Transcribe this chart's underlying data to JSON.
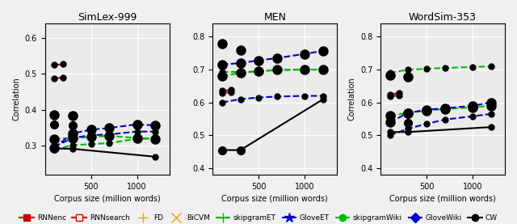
{
  "panels": [
    {
      "title": "SimLex-999",
      "xlabel": "Corpus size (million words)",
      "ylabel": "Correlation",
      "ylim": [
        0.22,
        0.64
      ],
      "yticks": [
        0.3,
        0.4,
        0.5,
        0.6
      ],
      "series": {
        "RNNenc": {
          "x": [
            100,
            200
          ],
          "y": [
            0.525,
            0.527
          ],
          "color": "#CC0000",
          "marker": "s",
          "ls": "-",
          "filled": true
        },
        "RNNsearch": {
          "x": [
            100,
            200
          ],
          "y": [
            0.488,
            0.49
          ],
          "color": "#CC0000",
          "marker": "s",
          "ls": "-",
          "filled": false
        },
        "FD": {
          "x": [
            100,
            300
          ],
          "y": [
            0.387,
            0.385
          ],
          "color": "#DDAA00",
          "marker": "+",
          "ls": "none",
          "filled": true
        },
        "BiCVM": {
          "x": [
            100,
            300
          ],
          "y": [
            0.36,
            0.358
          ],
          "color": "#DDAA00",
          "marker": "x",
          "ls": "none",
          "filled": true
        },
        "skipgramET": {
          "x": [
            100,
            300,
            500,
            700,
            1000,
            1200
          ],
          "y": [
            0.32,
            0.322,
            0.325,
            0.328,
            0.322,
            0.32
          ],
          "color": "#00BB00",
          "marker": "+",
          "ls": "--",
          "filled": true
        },
        "GloveET": {
          "x": [
            100,
            300,
            500,
            700,
            1000,
            1200
          ],
          "y": [
            0.295,
            0.335,
            0.345,
            0.35,
            0.36,
            0.357
          ],
          "color": "#0000CC",
          "marker": "*",
          "ls": "--",
          "filled": true
        },
        "skipgramWiki": {
          "x": [
            100,
            300,
            500,
            700,
            1000,
            1200
          ],
          "y": [
            0.29,
            0.302,
            0.305,
            0.308,
            0.32,
            0.32
          ],
          "color": "#00BB00",
          "marker": "o",
          "ls": "--",
          "filled": true
        },
        "GloveWiki": {
          "x": [
            100,
            300,
            500,
            700,
            1000,
            1200
          ],
          "y": [
            0.298,
            0.322,
            0.33,
            0.332,
            0.34,
            0.34
          ],
          "color": "#0000CC",
          "marker": "D",
          "ls": "--",
          "filled": true
        },
        "CW": {
          "x": [
            100,
            300,
            1200
          ],
          "y": [
            0.293,
            0.292,
            0.27
          ],
          "color": "#000000",
          "marker": "o",
          "ls": "-",
          "filled": true
        }
      }
    },
    {
      "title": "MEN",
      "xlabel": "Corpus size (million words)",
      "ylabel": "",
      "ylim": [
        0.38,
        0.84
      ],
      "yticks": [
        0.4,
        0.5,
        0.6,
        0.7,
        0.8
      ],
      "series": {
        "RNNenc": {
          "x": [
            100,
            200
          ],
          "y": [
            0.635,
            0.638
          ],
          "color": "#CC0000",
          "marker": "s",
          "ls": "-",
          "filled": true
        },
        "RNNsearch": {
          "x": [
            100,
            200
          ],
          "y": [
            0.628,
            0.632
          ],
          "color": "#CC0000",
          "marker": "s",
          "ls": "-",
          "filled": false
        },
        "FD": {
          "x": [
            100,
            300
          ],
          "y": [
            0.78,
            0.76
          ],
          "color": "#DDAA00",
          "marker": "+",
          "ls": "none",
          "filled": true
        },
        "BiCVM": {
          "x": [
            100,
            300
          ],
          "y": [
            0.455,
            0.455
          ],
          "color": "#DDAA00",
          "marker": "x",
          "ls": "none",
          "filled": true
        },
        "skipgramET": {
          "x": [
            100,
            300,
            500,
            700,
            1000,
            1200
          ],
          "y": [
            0.68,
            0.69,
            0.695,
            0.7,
            0.7,
            0.7
          ],
          "color": "#00BB00",
          "marker": "+",
          "ls": "--",
          "filled": true
        },
        "GloveET": {
          "x": [
            100,
            300,
            500,
            700,
            1000,
            1200
          ],
          "y": [
            0.715,
            0.72,
            0.728,
            0.735,
            0.748,
            0.757
          ],
          "color": "#0000CC",
          "marker": "*",
          "ls": "--",
          "filled": true
        },
        "skipgramWiki": {
          "x": [
            100,
            300,
            500,
            700,
            1000,
            1200
          ],
          "y": [
            0.693,
            0.693,
            0.695,
            0.698,
            0.7,
            0.7
          ],
          "color": "#00BB00",
          "marker": "o",
          "ls": "--",
          "filled": true
        },
        "GloveWiki": {
          "x": [
            100,
            300,
            500,
            700,
            1000,
            1200
          ],
          "y": [
            0.6,
            0.61,
            0.615,
            0.618,
            0.62,
            0.62
          ],
          "color": "#0000CC",
          "marker": "D",
          "ls": "--",
          "filled": true
        },
        "CW": {
          "x": [
            100,
            300,
            1200
          ],
          "y": [
            0.455,
            0.455,
            0.61
          ],
          "color": "#000000",
          "marker": "o",
          "ls": "-",
          "filled": true
        }
      }
    },
    {
      "title": "WordSim-353",
      "xlabel": "Corpus size (million words)",
      "ylabel": "Correlation",
      "ylim": [
        0.38,
        0.84
      ],
      "yticks": [
        0.4,
        0.5,
        0.6,
        0.7,
        0.8
      ],
      "series": {
        "RNNenc": {
          "x": [
            100,
            200
          ],
          "y": [
            0.625,
            0.628
          ],
          "color": "#CC0000",
          "marker": "s",
          "ls": "-",
          "filled": true
        },
        "RNNsearch": {
          "x": [
            100,
            200
          ],
          "y": [
            0.618,
            0.622
          ],
          "color": "#CC0000",
          "marker": "s",
          "ls": "-",
          "filled": false
        },
        "FD": {
          "x": [
            100,
            300
          ],
          "y": [
            0.683,
            0.678
          ],
          "color": "#DDAA00",
          "marker": "+",
          "ls": "none",
          "filled": true
        },
        "BiCVM": {
          "x": [
            100,
            300
          ],
          "y": [
            0.54,
            0.538
          ],
          "color": "#DDAA00",
          "marker": "x",
          "ls": "none",
          "filled": true
        },
        "skipgramET": {
          "x": [
            100,
            300,
            500,
            700,
            1000,
            1200
          ],
          "y": [
            0.56,
            0.568,
            0.575,
            0.58,
            0.585,
            0.59
          ],
          "color": "#00BB00",
          "marker": "+",
          "ls": "--",
          "filled": true
        },
        "GloveET": {
          "x": [
            100,
            300,
            500,
            700,
            1000,
            1200
          ],
          "y": [
            0.54,
            0.568,
            0.578,
            0.582,
            0.59,
            0.6
          ],
          "color": "#0000CC",
          "marker": "*",
          "ls": "--",
          "filled": true
        },
        "skipgramWiki": {
          "x": [
            100,
            300,
            500,
            700,
            1000,
            1200
          ],
          "y": [
            0.69,
            0.7,
            0.702,
            0.705,
            0.708,
            0.71
          ],
          "color": "#00BB00",
          "marker": "o",
          "ls": "--",
          "filled": true
        },
        "GloveWiki": {
          "x": [
            100,
            300,
            500,
            700,
            1000,
            1200
          ],
          "y": [
            0.5,
            0.52,
            0.535,
            0.548,
            0.558,
            0.565
          ],
          "color": "#0000CC",
          "marker": "D",
          "ls": "--",
          "filled": true
        },
        "CW": {
          "x": [
            100,
            300,
            1200
          ],
          "y": [
            0.51,
            0.51,
            0.525
          ],
          "color": "#000000",
          "marker": "o",
          "ls": "-",
          "filled": true
        }
      }
    }
  ],
  "legend": [
    {
      "label": "RNNenc",
      "color": "#CC0000",
      "marker": "s",
      "ls": "-",
      "filled": true
    },
    {
      "label": "RNNsearch",
      "color": "#CC0000",
      "marker": "s",
      "ls": "-",
      "filled": false
    },
    {
      "label": "FD",
      "color": "#DDAA00",
      "marker": "+",
      "ls": "none",
      "filled": true
    },
    {
      "label": "BiCVM",
      "color": "#DDAA00",
      "marker": "x",
      "ls": "none",
      "filled": true
    },
    {
      "label": "skipgramET",
      "color": "#00BB00",
      "marker": "+",
      "ls": "--",
      "filled": true
    },
    {
      "label": "GloveET",
      "color": "#0000CC",
      "marker": "*",
      "ls": "--",
      "filled": true
    },
    {
      "label": "skipgramWiki",
      "color": "#00BB00",
      "marker": "o",
      "ls": "--",
      "filled": true
    },
    {
      "label": "GloveWiki",
      "color": "#0000CC",
      "marker": "D",
      "ls": "--",
      "filled": true
    },
    {
      "label": "CW",
      "color": "#000000",
      "marker": "o",
      "ls": "-",
      "filled": true
    }
  ],
  "bg_color": "#EBEBEB",
  "grid_color": "#FFFFFF"
}
